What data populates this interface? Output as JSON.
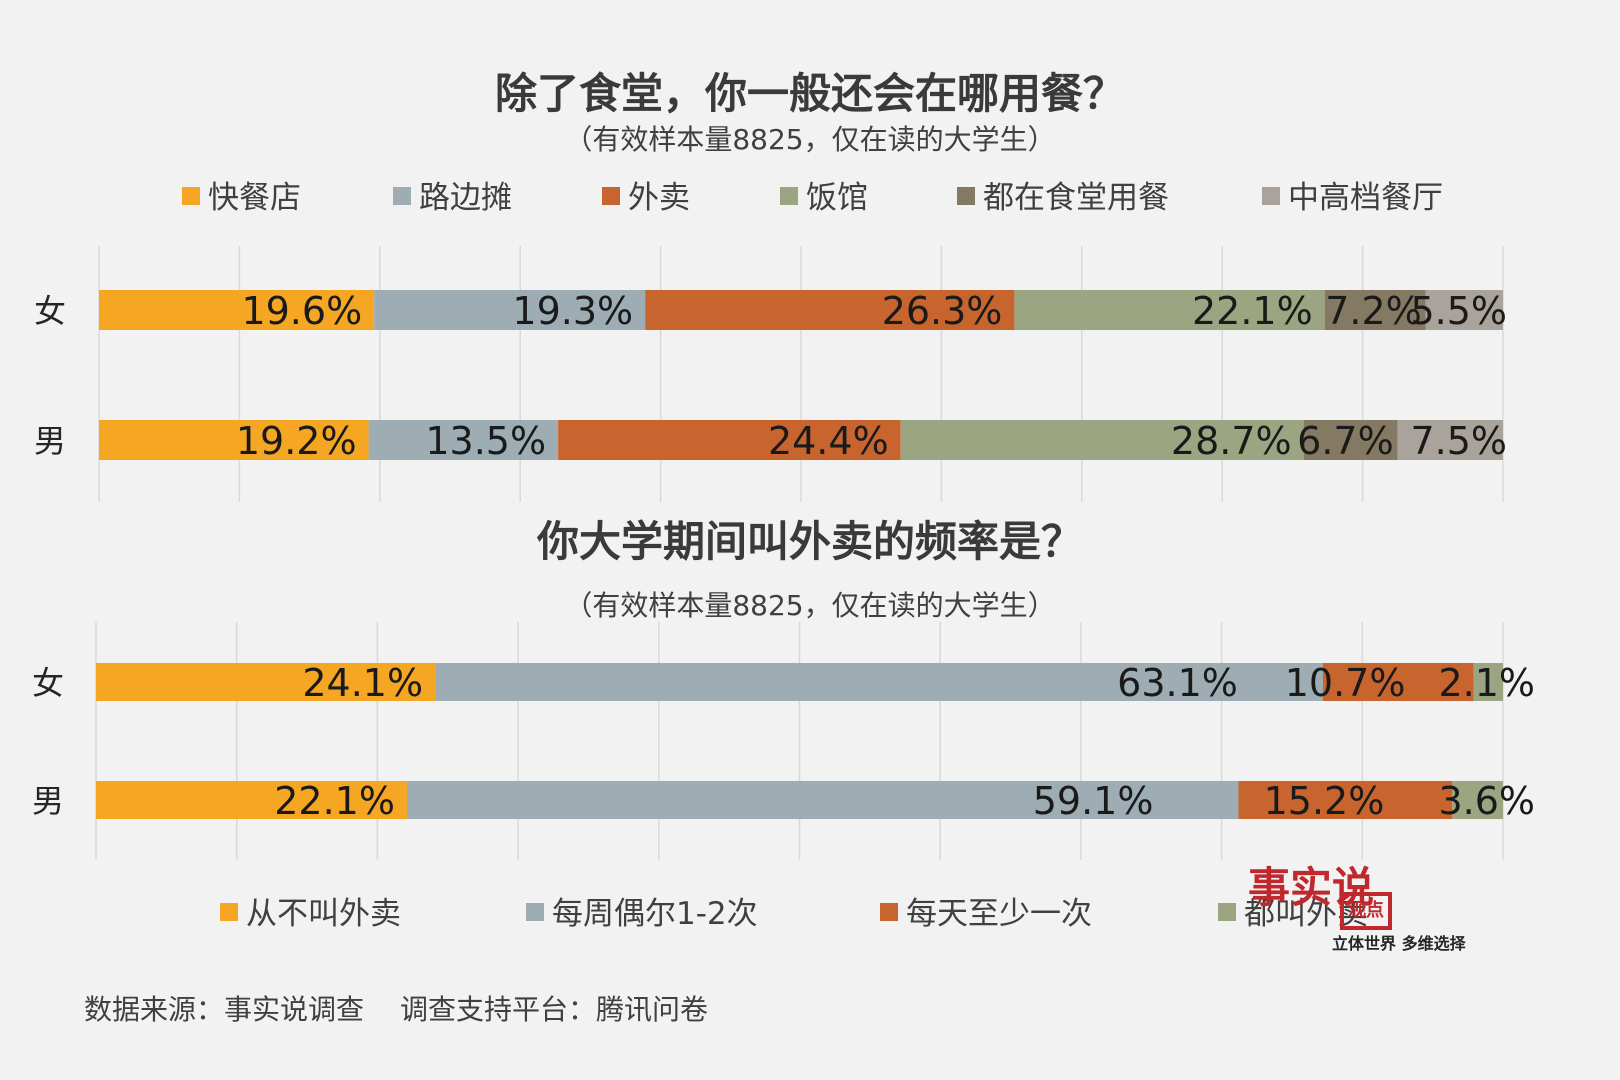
{
  "chart_data": [
    {
      "type": "bar",
      "orientation": "horizontal",
      "stacked": true,
      "title": "除了食堂，你一般还会在哪用餐？",
      "subtitle": "（有效样本量8825，仅在读的大学生）",
      "categories": [
        "女",
        "男"
      ],
      "series": [
        {
          "name": "快餐店",
          "color": "#f5a623",
          "values": [
            19.6,
            19.2
          ],
          "labels": [
            "19.6%",
            "19.2%"
          ]
        },
        {
          "name": "路边摊",
          "color": "#9eadb3",
          "values": [
            19.3,
            13.5
          ],
          "labels": [
            "19.3%",
            "13.5%"
          ]
        },
        {
          "name": "外卖",
          "color": "#c8652e",
          "values": [
            26.3,
            24.4
          ],
          "labels": [
            "26.3%",
            "24.4%"
          ]
        },
        {
          "name": "饭馆",
          "color": "#9ca582",
          "values": [
            22.1,
            28.7
          ],
          "labels": [
            "22.1%",
            "28.7%"
          ]
        },
        {
          "name": "都在食堂用餐",
          "color": "#847a64",
          "values": [
            7.2,
            6.7
          ],
          "labels": [
            "7.2%",
            "6.7%"
          ]
        },
        {
          "name": "中高档餐厅",
          "color": "#aaa39b",
          "values": [
            5.5,
            7.5
          ],
          "labels": [
            "5.5%",
            "7.5%"
          ]
        }
      ],
      "xlim": [
        0,
        100
      ],
      "grid": true,
      "legend": "top"
    },
    {
      "type": "bar",
      "orientation": "horizontal",
      "stacked": true,
      "title": "你大学期间叫外卖的频率是？",
      "subtitle": "（有效样本量8825，仅在读的大学生）",
      "categories": [
        "女",
        "男"
      ],
      "series": [
        {
          "name": "从不叫外卖",
          "color": "#f5a623",
          "values": [
            24.1,
            22.1
          ],
          "labels": [
            "24.1%",
            "22.1%"
          ]
        },
        {
          "name": "每周偶尔1-2次",
          "color": "#9eadb3",
          "values": [
            63.1,
            59.1
          ],
          "labels": [
            "63.1%",
            "59.1%"
          ]
        },
        {
          "name": "每天至少一次",
          "color": "#c8652e",
          "values": [
            10.7,
            15.2
          ],
          "labels": [
            "10.7%",
            "15.2%"
          ]
        },
        {
          "name": "都叫外卖",
          "color": "#9ca582",
          "values": [
            2.1,
            3.6
          ],
          "labels": [
            "2.1%",
            "3.6%"
          ]
        }
      ],
      "xlim": [
        0,
        100
      ],
      "grid": true,
      "legend": "bottom"
    }
  ],
  "footer": {
    "source": "数据来源：事实说调查",
    "platform": "调查支持平台：腾讯问卷"
  },
  "logo": {
    "name": "事实说",
    "slogan": "立体世界 多维选择",
    "box_text": "观点"
  }
}
